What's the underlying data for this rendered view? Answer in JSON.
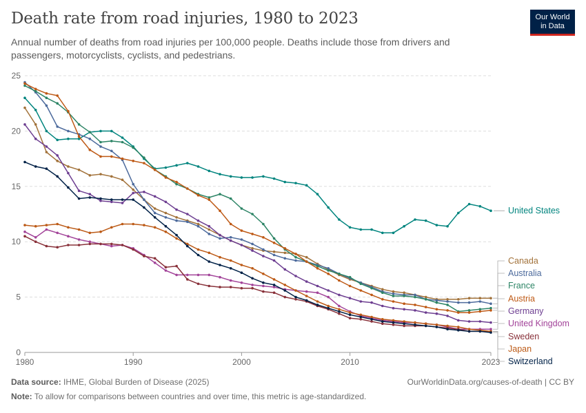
{
  "header": {
    "title": "Death rate from road injuries, 1980 to 2023",
    "subtitle": "Annual number of deaths from road injuries per 100,000 people. Deaths include those from drivers and passengers, motorcyclists, cyclists, and pedestrians.",
    "logo_line1": "Our World",
    "logo_line2": "in Data"
  },
  "footer": {
    "source_label": "Data source:",
    "source_text": "IHME, Global Burden of Disease (2025)",
    "url_text": "OurWorldinData.org/causes-of-death | CC BY",
    "note_label": "Note:",
    "note_text": "To allow for comparisons between countries and over time, this metric is age-standardized."
  },
  "colors": {
    "United States": "#00847e",
    "Canada": "#a2723a",
    "Australia": "#4c6a9c",
    "France": "#2c8465",
    "Austria": "#be5915",
    "Germany": "#6d3e91",
    "United Kingdom": "#a24399",
    "Sweden": "#883039",
    "Japan": "#bc5a16",
    "Switzerland": "#002147"
  },
  "chart_data": {
    "type": "line",
    "title": "Death rate from road injuries, 1980 to 2023",
    "xlabel": "",
    "ylabel": "",
    "ylim": [
      0,
      25
    ],
    "xlim": [
      1980,
      2023
    ],
    "yticks": [
      "0",
      "5",
      "10",
      "15",
      "20",
      "25"
    ],
    "xticks": [
      "1980",
      "1990",
      "2000",
      "2010",
      "2023"
    ],
    "grid": "horizontal dashed",
    "legend": "right, labels at line ends",
    "x": [
      1980,
      1981,
      1982,
      1983,
      1984,
      1985,
      1986,
      1987,
      1988,
      1989,
      1990,
      1991,
      1992,
      1993,
      1994,
      1995,
      1996,
      1997,
      1998,
      1999,
      2000,
      2001,
      2002,
      2003,
      2004,
      2005,
      2006,
      2007,
      2008,
      2009,
      2010,
      2011,
      2012,
      2013,
      2014,
      2015,
      2016,
      2017,
      2018,
      2019,
      2020,
      2021,
      2022,
      2023
    ],
    "series": [
      {
        "name": "United States",
        "values": [
          23.0,
          21.9,
          20.0,
          19.2,
          19.3,
          19.3,
          19.9,
          20.0,
          20.0,
          19.4,
          18.6,
          17.5,
          16.6,
          16.7,
          16.9,
          17.1,
          16.8,
          16.4,
          16.1,
          15.9,
          15.8,
          15.8,
          15.9,
          15.7,
          15.4,
          15.3,
          15.1,
          14.3,
          13.1,
          12.0,
          11.3,
          11.1,
          11.1,
          10.8,
          10.8,
          11.4,
          12.0,
          11.9,
          11.5,
          11.4,
          12.6,
          13.4,
          13.2,
          12.8
        ]
      },
      {
        "name": "Canada",
        "values": [
          22.1,
          20.6,
          18.1,
          17.3,
          16.8,
          16.5,
          16.0,
          16.1,
          15.9,
          15.6,
          14.7,
          13.8,
          13.0,
          12.6,
          12.2,
          11.9,
          11.6,
          11.1,
          10.6,
          10.1,
          9.7,
          9.4,
          9.2,
          9.1,
          9.0,
          8.9,
          8.6,
          8.0,
          7.5,
          7.0,
          6.6,
          6.3,
          6.0,
          5.7,
          5.5,
          5.4,
          5.2,
          5.0,
          4.8,
          4.8,
          4.8,
          4.9,
          4.9,
          4.9
        ]
      },
      {
        "name": "Australia",
        "values": [
          24.4,
          23.5,
          22.3,
          20.4,
          20.0,
          19.7,
          19.3,
          18.6,
          18.2,
          17.4,
          15.2,
          13.8,
          12.6,
          12.2,
          11.9,
          11.8,
          11.4,
          10.7,
          10.3,
          10.4,
          10.2,
          9.8,
          9.3,
          8.8,
          8.5,
          8.3,
          8.2,
          7.9,
          7.6,
          7.1,
          6.7,
          6.3,
          5.9,
          5.5,
          5.3,
          5.2,
          5.2,
          4.8,
          4.7,
          4.6,
          4.5,
          4.5,
          4.6,
          4.4
        ]
      },
      {
        "name": "France",
        "values": [
          24.1,
          23.6,
          23.0,
          22.5,
          21.7,
          20.6,
          19.9,
          19.0,
          19.1,
          19.0,
          18.5,
          17.6,
          16.5,
          15.9,
          15.2,
          14.8,
          14.3,
          14.0,
          14.3,
          13.9,
          13.0,
          12.5,
          11.6,
          10.3,
          9.3,
          8.6,
          8.2,
          7.8,
          7.4,
          7.1,
          6.8,
          6.2,
          5.8,
          5.4,
          5.1,
          5.1,
          5.0,
          4.8,
          4.5,
          4.3,
          3.7,
          3.8,
          3.9,
          4.0
        ]
      },
      {
        "name": "Austria",
        "values": [
          24.3,
          23.8,
          23.4,
          23.2,
          21.8,
          19.5,
          18.3,
          17.7,
          17.7,
          17.5,
          17.3,
          17.1,
          16.5,
          15.8,
          15.4,
          14.8,
          14.2,
          13.8,
          12.8,
          11.6,
          11.0,
          10.7,
          10.4,
          9.9,
          9.4,
          8.9,
          8.2,
          7.6,
          7.1,
          6.5,
          6.0,
          5.6,
          5.2,
          4.8,
          4.6,
          4.4,
          4.3,
          4.1,
          3.9,
          3.8,
          3.6,
          3.6,
          3.7,
          3.8
        ]
      },
      {
        "name": "Germany",
        "values": [
          20.6,
          19.3,
          18.6,
          17.8,
          16.2,
          14.6,
          14.3,
          13.7,
          13.6,
          13.5,
          14.4,
          14.5,
          14.1,
          13.6,
          12.9,
          12.5,
          11.9,
          11.4,
          10.6,
          10.1,
          9.7,
          9.2,
          8.7,
          8.3,
          7.5,
          6.9,
          6.4,
          6.0,
          5.6,
          5.2,
          4.9,
          4.6,
          4.5,
          4.2,
          4.0,
          3.9,
          3.8,
          3.6,
          3.5,
          3.3,
          2.9,
          2.8,
          2.8,
          2.7
        ]
      },
      {
        "name": "United Kingdom",
        "values": [
          10.9,
          10.4,
          11.1,
          10.8,
          10.5,
          10.2,
          10.0,
          9.8,
          9.6,
          9.7,
          9.4,
          8.8,
          8.1,
          7.4,
          7.0,
          7.0,
          7.0,
          7.0,
          6.8,
          6.5,
          6.3,
          6.1,
          6.0,
          5.9,
          5.7,
          5.6,
          5.5,
          5.4,
          5.0,
          4.2,
          3.7,
          3.3,
          3.1,
          2.9,
          2.8,
          2.7,
          2.7,
          2.6,
          2.5,
          2.3,
          2.1,
          2.1,
          2.1,
          2.1
        ]
      },
      {
        "name": "Sweden",
        "values": [
          10.5,
          10.0,
          9.6,
          9.5,
          9.7,
          9.7,
          9.8,
          9.8,
          9.8,
          9.7,
          9.3,
          8.7,
          8.5,
          7.7,
          7.8,
          6.6,
          6.2,
          6.0,
          5.9,
          5.9,
          5.8,
          5.8,
          5.5,
          5.4,
          5.0,
          4.8,
          4.6,
          4.2,
          3.9,
          3.5,
          3.1,
          3.0,
          2.8,
          2.6,
          2.5,
          2.4,
          2.4,
          2.4,
          2.3,
          2.2,
          2.1,
          1.9,
          1.9,
          1.9
        ]
      },
      {
        "name": "Japan",
        "values": [
          11.5,
          11.4,
          11.5,
          11.6,
          11.3,
          11.1,
          10.8,
          10.9,
          11.3,
          11.6,
          11.6,
          11.5,
          11.3,
          10.9,
          10.3,
          9.8,
          9.3,
          9.0,
          8.6,
          8.3,
          7.9,
          7.6,
          7.1,
          6.6,
          6.1,
          5.6,
          5.1,
          4.6,
          4.2,
          3.9,
          3.6,
          3.4,
          3.2,
          3.0,
          2.9,
          2.8,
          2.7,
          2.6,
          2.5,
          2.4,
          2.3,
          2.1,
          2.0,
          1.9
        ]
      },
      {
        "name": "Switzerland",
        "values": [
          17.2,
          16.8,
          16.6,
          15.9,
          14.9,
          13.9,
          14.0,
          13.9,
          13.8,
          13.8,
          13.8,
          13.1,
          12.2,
          11.4,
          10.6,
          9.6,
          8.8,
          8.2,
          7.9,
          7.6,
          7.2,
          6.7,
          6.3,
          6.1,
          5.6,
          5.0,
          4.7,
          4.3,
          4.0,
          3.7,
          3.4,
          3.2,
          3.0,
          2.8,
          2.7,
          2.6,
          2.5,
          2.4,
          2.3,
          2.1,
          2.0,
          1.9,
          1.9,
          1.8
        ]
      }
    ],
    "label_order": [
      "United States",
      "Canada",
      "Australia",
      "France",
      "Austria",
      "Germany",
      "United Kingdom",
      "Sweden",
      "Japan",
      "Switzerland"
    ]
  }
}
